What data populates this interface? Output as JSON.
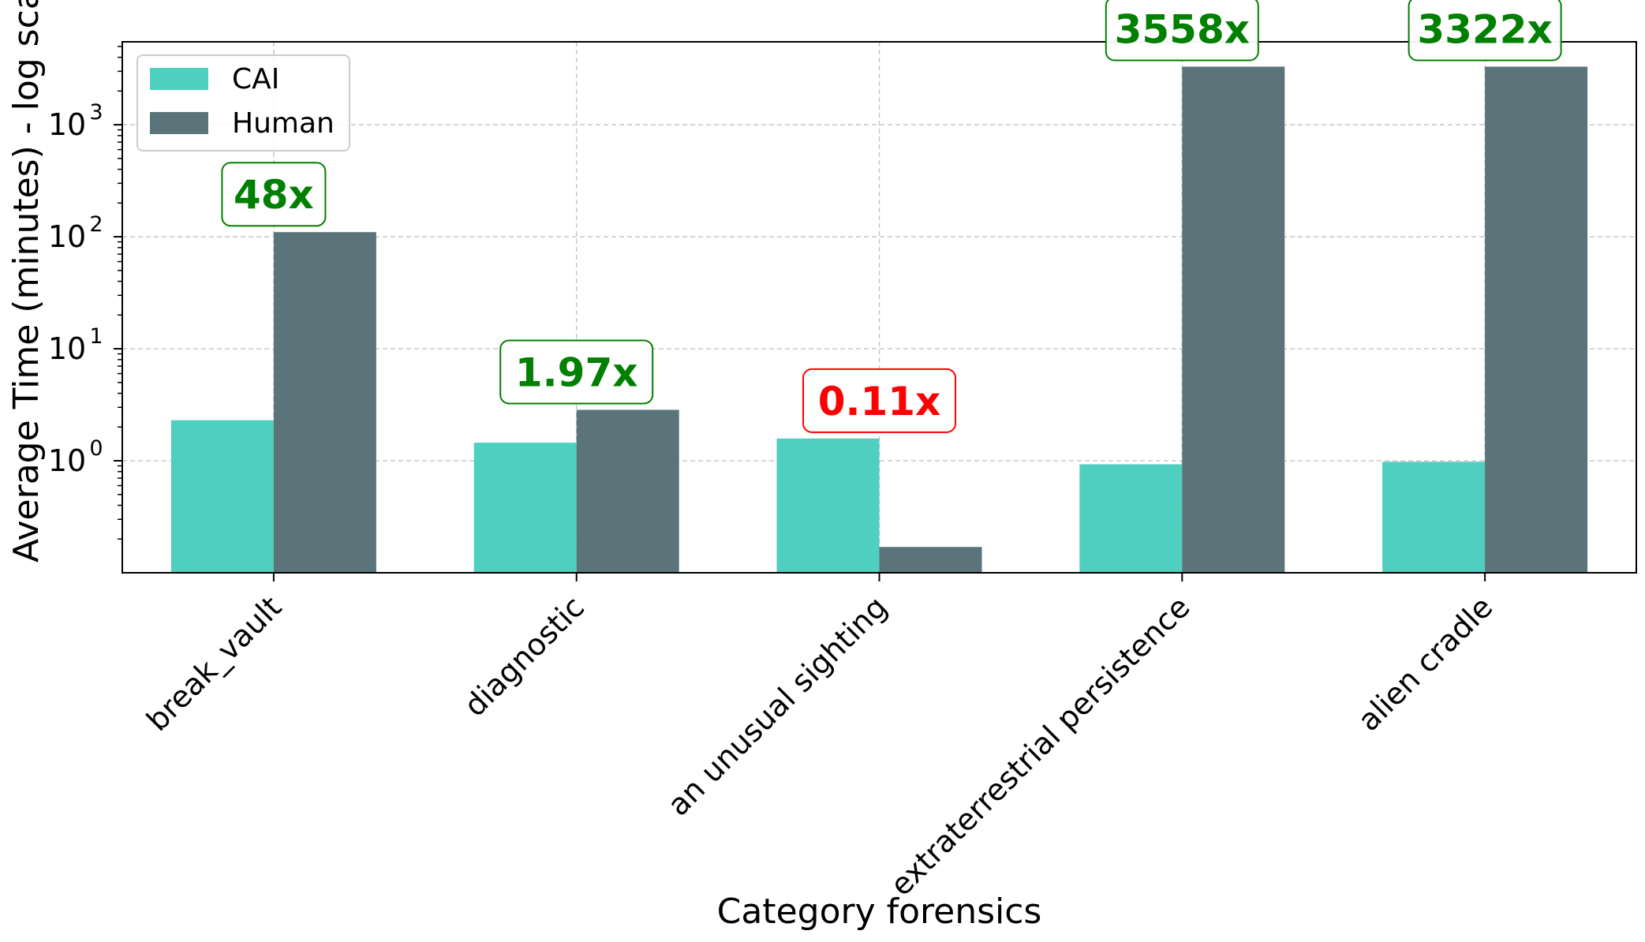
{
  "chart_data": {
    "type": "bar",
    "title": "",
    "xlabel": "Category forensics",
    "ylabel": "Average Time (minutes) - log scale",
    "yscale": "log",
    "ylim": [
      0.1,
      5500
    ],
    "yticks": [
      {
        "value": 1,
        "base": "10",
        "exp": "0"
      },
      {
        "value": 10,
        "base": "10",
        "exp": "1"
      },
      {
        "value": 100,
        "base": "10",
        "exp": "2"
      },
      {
        "value": 1000,
        "base": "10",
        "exp": "3"
      }
    ],
    "grid": true,
    "legend": {
      "placement": "top-left"
    },
    "categories": [
      "break_vault",
      "diagnostic",
      "an unusual sighting",
      "extraterrestrial persistence",
      "alien cradle"
    ],
    "series": [
      {
        "name": "CAI",
        "color": "#4ecfbf",
        "values": [
          2.3,
          1.45,
          1.58,
          0.93,
          0.98
        ]
      },
      {
        "name": "Human",
        "color": "#5b747a",
        "values": [
          110,
          2.85,
          0.17,
          3300,
          3300
        ]
      }
    ],
    "annotations": [
      {
        "category": "break_vault",
        "text": "48x",
        "color": "#008000",
        "anchor_value": 110
      },
      {
        "category": "diagnostic",
        "text": "1.97x",
        "color": "#008000",
        "anchor_value": 2.85
      },
      {
        "category": "an unusual sighting",
        "text": "0.11x",
        "color": "#ff0000",
        "anchor_value": 1.58
      },
      {
        "category": "extraterrestrial persistence",
        "text": "3558x",
        "color": "#008000",
        "anchor_value": 3300
      },
      {
        "category": "alien cradle",
        "text": "3322x",
        "color": "#008000",
        "anchor_value": 3300
      }
    ]
  }
}
